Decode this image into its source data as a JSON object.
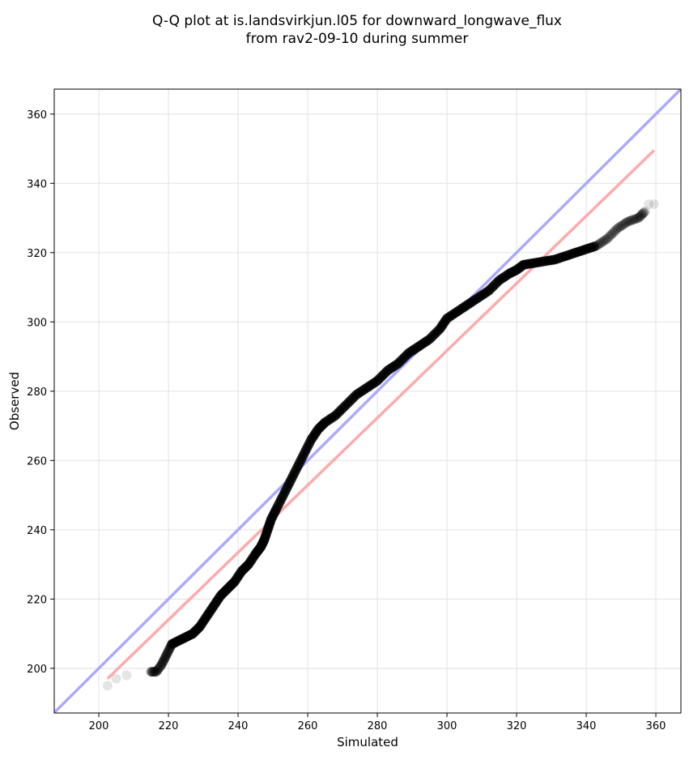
{
  "chart_data": {
    "type": "scatter",
    "title_line1": "Q-Q plot at is.landsvirkjun.l05 for downward_longwave_flux",
    "title_line2": "from rav2-09-10 during summer",
    "xlabel": "Simulated",
    "ylabel": "Observed",
    "xlim": [
      187.2,
      367.2
    ],
    "ylim": [
      187.1,
      367.2
    ],
    "xticks": [
      200,
      220,
      240,
      260,
      280,
      300,
      320,
      340,
      360
    ],
    "yticks": [
      200,
      220,
      240,
      260,
      280,
      300,
      320,
      340,
      360
    ],
    "grid": true,
    "colors": {
      "points": "#000000",
      "identity_line": "#aaaaff",
      "fit_line": "#ffaaaa"
    },
    "identity_line": {
      "from": [
        187.2,
        187.2
      ],
      "to": [
        367.2,
        367.2
      ]
    },
    "fit_line": {
      "from": [
        202.5,
        197
      ],
      "to": [
        359.5,
        349.5
      ]
    },
    "points": [
      [
        202.5,
        195
      ],
      [
        205,
        197
      ],
      [
        208,
        198
      ],
      [
        215,
        199
      ],
      [
        216.5,
        199
      ],
      [
        218,
        201
      ],
      [
        219,
        203
      ],
      [
        220,
        205
      ],
      [
        221,
        207
      ],
      [
        223,
        208
      ],
      [
        225,
        209
      ],
      [
        227,
        210
      ],
      [
        229,
        212
      ],
      [
        231,
        215
      ],
      [
        233,
        218
      ],
      [
        235,
        221
      ],
      [
        237,
        223
      ],
      [
        239,
        225
      ],
      [
        241,
        228
      ],
      [
        243,
        230
      ],
      [
        245,
        233
      ],
      [
        246.5,
        235
      ],
      [
        247.5,
        237
      ],
      [
        248.5,
        240
      ],
      [
        249.5,
        243
      ],
      [
        251,
        246
      ],
      [
        253,
        250
      ],
      [
        255,
        254
      ],
      [
        257,
        258
      ],
      [
        259,
        262
      ],
      [
        261,
        266
      ],
      [
        263,
        269
      ],
      [
        265,
        271
      ],
      [
        268,
        273
      ],
      [
        271,
        276
      ],
      [
        274,
        279
      ],
      [
        277,
        281
      ],
      [
        280,
        283
      ],
      [
        283,
        286
      ],
      [
        286,
        288
      ],
      [
        289,
        291
      ],
      [
        292,
        293
      ],
      [
        295,
        295
      ],
      [
        298,
        298
      ],
      [
        300,
        301
      ],
      [
        303,
        303
      ],
      [
        306,
        305
      ],
      [
        309,
        307
      ],
      [
        312,
        309
      ],
      [
        315,
        312
      ],
      [
        318,
        314
      ],
      [
        320,
        315
      ],
      [
        322,
        316.5
      ],
      [
        325,
        317
      ],
      [
        328,
        317.5
      ],
      [
        331,
        318
      ],
      [
        334,
        319
      ],
      [
        337,
        320
      ],
      [
        340,
        321
      ],
      [
        343,
        322
      ],
      [
        346,
        324
      ],
      [
        349,
        327
      ],
      [
        352,
        329
      ],
      [
        355,
        330
      ],
      [
        357,
        332
      ],
      [
        358,
        334
      ],
      [
        359.5,
        334
      ]
    ]
  }
}
